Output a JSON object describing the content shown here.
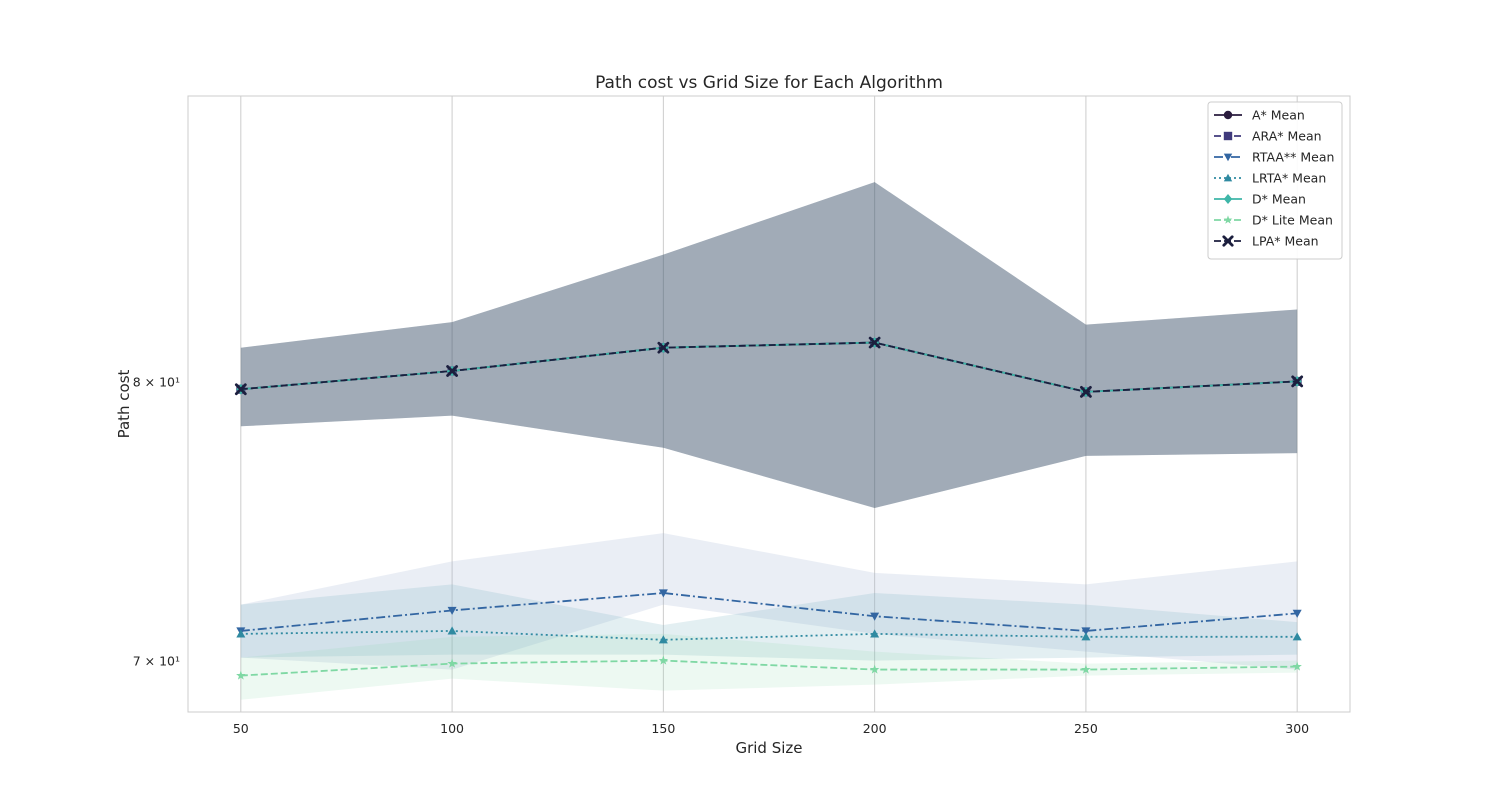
{
  "chart_data": {
    "type": "line",
    "title": "Path cost vs Grid Size for Each Algorithm",
    "xlabel": "Grid Size",
    "ylabel": "Path cost",
    "x": [
      50,
      100,
      150,
      200,
      250,
      300
    ],
    "yscale": "log",
    "ylim": [
      68.3,
      91.7
    ],
    "xlim": [
      37.5,
      312.5
    ],
    "grid": "x",
    "y_ticks": [
      {
        "value": 70,
        "label": "7 × 10¹"
      },
      {
        "value": 80,
        "label": "8 × 10¹"
      }
    ],
    "legend_placement": "top-right",
    "series": [
      {
        "name": "A* Mean",
        "values": [
          79.7,
          80.4,
          81.3,
          81.5,
          79.6,
          80.0
        ],
        "color": "#2a1c3e",
        "marker": "circle",
        "dash": "solid",
        "band": [
          [
            78.3,
            81.3
          ],
          [
            78.7,
            82.3
          ],
          [
            77.5,
            85.0
          ],
          [
            75.3,
            88.0
          ],
          [
            77.2,
            82.2
          ],
          [
            77.3,
            82.8
          ]
        ]
      },
      {
        "name": "ARA* Mean",
        "values": [
          79.7,
          80.4,
          81.3,
          81.5,
          79.6,
          80.0
        ],
        "color": "#403a7c",
        "marker": "square",
        "dash": "dashed",
        "band": [
          [
            78.3,
            81.3
          ],
          [
            78.7,
            82.3
          ],
          [
            77.5,
            85.0
          ],
          [
            75.3,
            88.0
          ],
          [
            77.2,
            82.2
          ],
          [
            77.3,
            82.8
          ]
        ]
      },
      {
        "name": "RTAA** Mean",
        "values": [
          71.0,
          71.7,
          72.3,
          71.5,
          71.0,
          71.6
        ],
        "color": "#3366a2",
        "marker": "triangle-down",
        "dash": "dashdot",
        "band": [
          [
            70.1,
            71.9
          ],
          [
            69.7,
            73.4
          ],
          [
            71.9,
            74.4
          ],
          [
            70.9,
            73.0
          ],
          [
            70.3,
            72.6
          ],
          [
            69.7,
            73.4
          ]
        ]
      },
      {
        "name": "LRTA* Mean",
        "values": [
          70.9,
          71.0,
          70.7,
          70.9,
          70.8,
          70.8
        ],
        "color": "#2f8aa1",
        "marker": "triangle-up",
        "dash": "dotted",
        "band": [
          [
            70.1,
            71.9
          ],
          [
            70.2,
            72.6
          ],
          [
            70.2,
            71.2
          ],
          [
            70.0,
            72.3
          ],
          [
            70.1,
            71.9
          ],
          [
            70.2,
            71.3
          ]
        ]
      },
      {
        "name": "D* Mean",
        "values": [
          79.7,
          80.4,
          81.3,
          81.5,
          79.6,
          80.0
        ],
        "color": "#3eb6a8",
        "marker": "diamond",
        "dash": "solid",
        "band": [
          [
            78.3,
            81.3
          ],
          [
            78.7,
            82.3
          ],
          [
            77.5,
            85.0
          ],
          [
            75.3,
            88.0
          ],
          [
            77.2,
            82.2
          ],
          [
            77.3,
            82.8
          ]
        ]
      },
      {
        "name": "D* Lite Mean",
        "values": [
          69.5,
          69.9,
          70.0,
          69.7,
          69.7,
          69.8
        ],
        "color": "#7fd8a4",
        "marker": "star",
        "dash": "dashed",
        "band": [
          [
            68.7,
            70.1
          ],
          [
            69.4,
            70.8
          ],
          [
            69.0,
            70.9
          ],
          [
            69.2,
            70.3
          ],
          [
            69.5,
            69.9
          ],
          [
            69.6,
            70.0
          ]
        ]
      },
      {
        "name": "LPA* Mean",
        "values": [
          79.7,
          80.4,
          81.3,
          81.5,
          79.6,
          80.0
        ],
        "color": "#1c1f3e",
        "marker": "x",
        "dash": "dashed",
        "band": [
          [
            78.3,
            81.3
          ],
          [
            78.7,
            82.3
          ],
          [
            77.5,
            85.0
          ],
          [
            75.3,
            88.0
          ],
          [
            77.2,
            82.2
          ],
          [
            77.3,
            82.8
          ]
        ]
      }
    ]
  }
}
